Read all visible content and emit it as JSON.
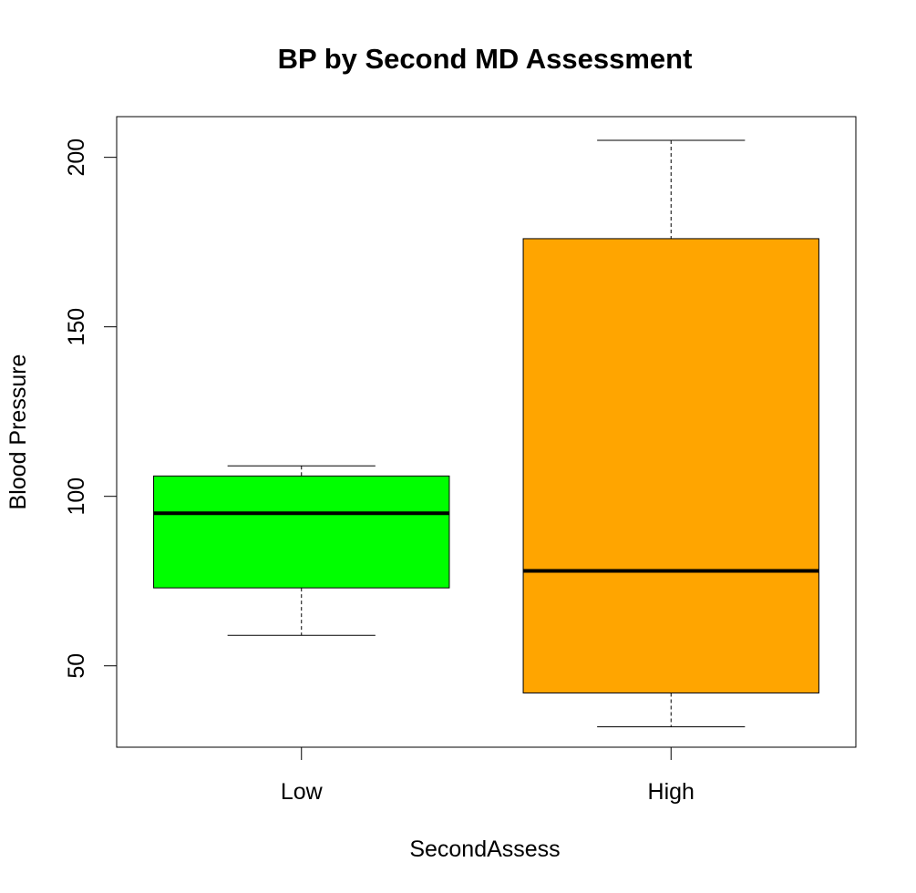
{
  "chart_data": {
    "type": "boxplot",
    "title": "BP by Second MD Assessment",
    "xlabel": "SecondAssess",
    "ylabel": "Blood Pressure",
    "categories": [
      "Low",
      "High"
    ],
    "boxes": [
      {
        "category": "Low",
        "whisker_low": 59,
        "q1": 73,
        "median": 95,
        "q3": 106,
        "whisker_high": 109,
        "color": "#00FF00"
      },
      {
        "category": "High",
        "whisker_low": 32,
        "q1": 42,
        "median": 78,
        "q3": 176,
        "whisker_high": 205,
        "color": "#FFA500"
      }
    ],
    "yticks": [
      50,
      100,
      150,
      200
    ],
    "ylim": [
      26,
      212
    ],
    "grid": false,
    "legend": "none"
  }
}
